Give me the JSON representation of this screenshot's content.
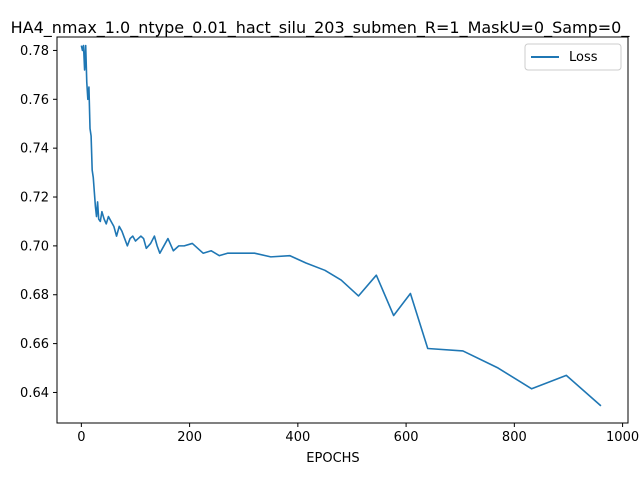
{
  "chart_data": {
    "type": "line",
    "title": "HA4_nmax_1.0_ntype_0.01_hact_silu_203_submen_R=1_MaskU=0_Samp=0_",
    "xlabel": "EPOCHS",
    "ylabel": "",
    "xlim": [
      -45,
      1010
    ],
    "ylim": [
      0.6275,
      0.7855
    ],
    "xticks": [
      0,
      200,
      400,
      600,
      800,
      1000
    ],
    "yticks": [
      0.64,
      0.66,
      0.68,
      0.7,
      0.72,
      0.74,
      0.76,
      0.78
    ],
    "ytick_labels": [
      "0.64",
      "0.66",
      "0.68",
      "0.70",
      "0.72",
      "0.74",
      "0.76",
      "0.78"
    ],
    "grid": false,
    "legend_position": "top-right",
    "series": [
      {
        "name": "Loss",
        "color": "#1f77b4",
        "x": [
          0,
          2,
          4,
          6,
          8,
          10,
          12,
          14,
          16,
          18,
          20,
          22,
          24,
          26,
          28,
          30,
          32,
          35,
          38,
          42,
          46,
          50,
          55,
          60,
          65,
          70,
          75,
          80,
          85,
          90,
          95,
          100,
          105,
          110,
          115,
          120,
          128,
          135,
          140,
          145,
          150,
          160,
          170,
          180,
          190,
          205,
          225,
          240,
          255,
          270,
          285,
          300,
          320,
          350,
          385,
          415,
          450,
          480,
          512,
          545,
          577,
          608,
          640,
          705,
          770,
          832,
          896,
          960
        ],
        "y": [
          0.782,
          0.78,
          0.782,
          0.772,
          0.782,
          0.767,
          0.76,
          0.765,
          0.748,
          0.745,
          0.731,
          0.728,
          0.722,
          0.716,
          0.712,
          0.718,
          0.711,
          0.71,
          0.714,
          0.711,
          0.709,
          0.712,
          0.71,
          0.708,
          0.704,
          0.708,
          0.706,
          0.703,
          0.7,
          0.703,
          0.704,
          0.702,
          0.703,
          0.704,
          0.703,
          0.699,
          0.701,
          0.704,
          0.7,
          0.697,
          0.699,
          0.703,
          0.698,
          0.7,
          0.7,
          0.701,
          0.697,
          0.698,
          0.696,
          0.697,
          0.697,
          0.697,
          0.697,
          0.6955,
          0.696,
          0.693,
          0.69,
          0.686,
          0.6795,
          0.688,
          0.6715,
          0.6805,
          0.658,
          0.657,
          0.65,
          0.6415,
          0.647,
          0.6345
        ]
      }
    ]
  }
}
